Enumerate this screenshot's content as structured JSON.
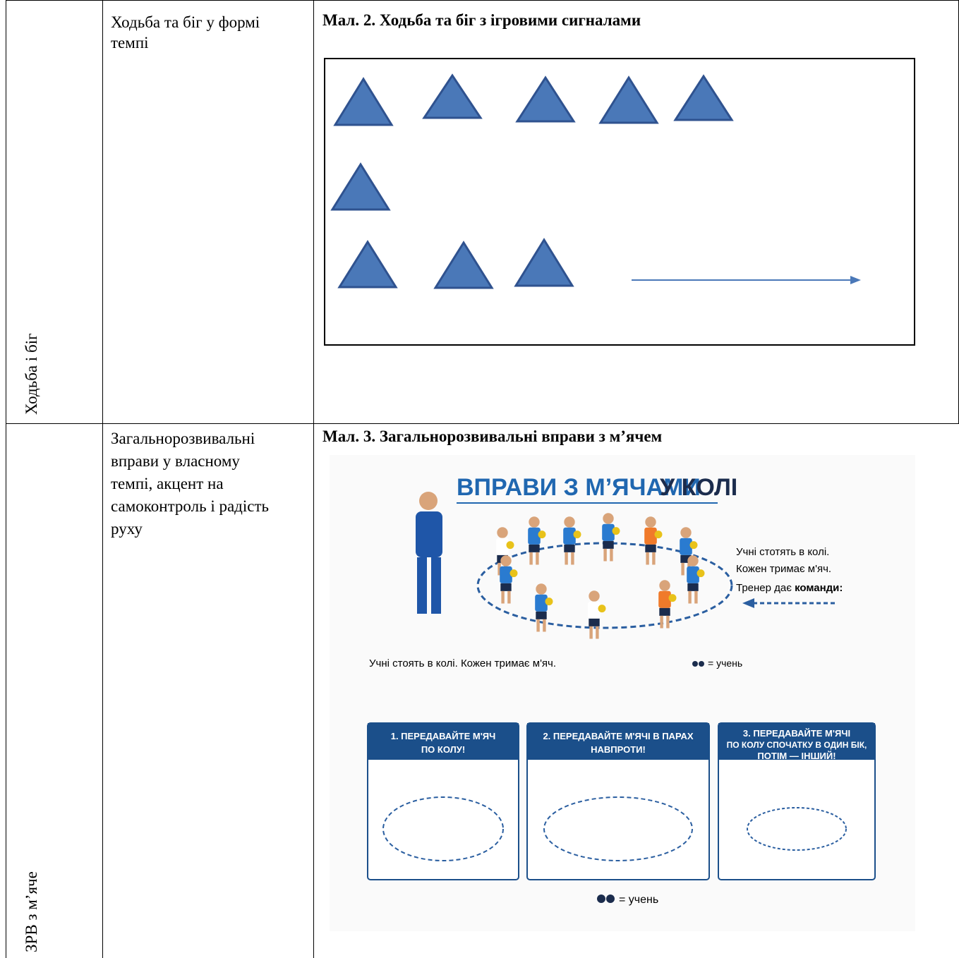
{
  "table": {
    "rows": [
      {
        "section": "Ходьба і біг",
        "content": "Ходьба та біг у формі темпі",
        "caption": "Мал. 2. Ходьба та біг з ігровими сигналами"
      },
      {
        "section": "ЗРВ з м’яче",
        "content": "Загальнорозвивальні вправи у власному темпі, акцент на самоконтроль і радість руху",
        "caption": "Мал. 3. Загальнорозвивальні вправи з м’ячем",
        "figure": {
          "title_main": "ВПРАВИ З М’ЯЧАМИ",
          "title_end": "У КОЛІ",
          "notes": [
            "Учні стотять в колі.",
            "Кожен тримає м'яч.",
            "Тренер дає"
          ],
          "notes_bold": "команди:",
          "subcaption": "Учні стоять в колі. Кожен тримає м'яч.",
          "legend": "= учень",
          "panels": [
            [
              "1. ПЕРЕДАВАЙТЕ М'ЯЧ",
              "ПО КОЛУ!"
            ],
            [
              "2. ПЕРЕДАВАЙТЕ М'ЯЧІ В ПАРАХ",
              "НАВПРОТИ!"
            ],
            [
              "3. ПЕРЕДАВАЙТЕ М'ЯЧІ",
              "ПО КОЛУ СПОЧАТКУ В ОДИН БІК,",
              "ПОТІМ — ІНШИЙ!"
            ]
          ],
          "bottom_legend": "= учень"
        }
      }
    ]
  }
}
